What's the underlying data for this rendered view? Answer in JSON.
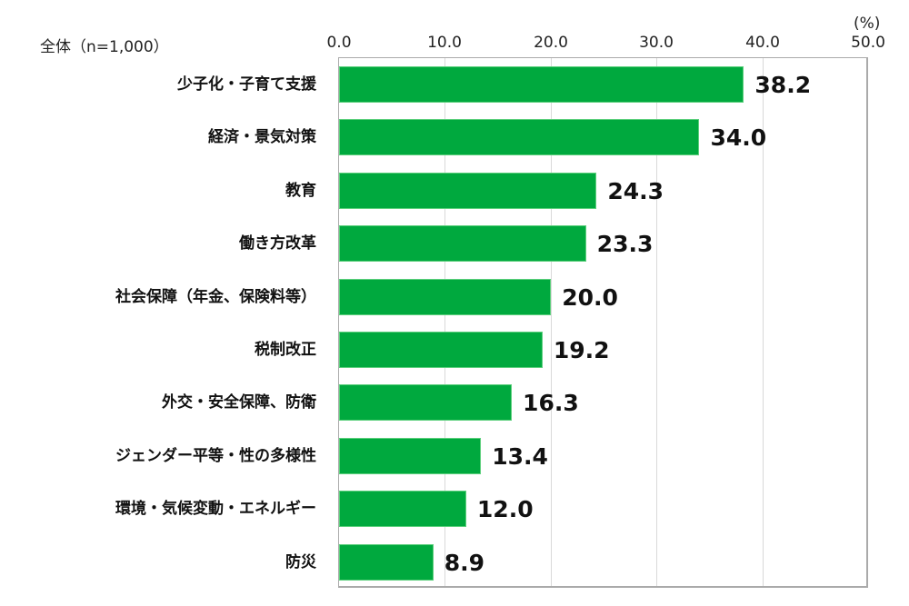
{
  "header": {
    "sample_label": "全体（n=1,000）",
    "unit_label": "(%)"
  },
  "axis": {
    "ticks": [
      "0.0",
      "10.0",
      "20.0",
      "30.0",
      "40.0",
      "50.0"
    ]
  },
  "bars": [
    {
      "label": "少子化・子育て支援",
      "value": "38.2"
    },
    {
      "label": "経済・景気対策",
      "value": "34.0"
    },
    {
      "label": "教育",
      "value": "24.3"
    },
    {
      "label": "働き方改革",
      "value": "23.3"
    },
    {
      "label": "社会保障（年金、保険料等）",
      "value": "20.0"
    },
    {
      "label": "税制改正",
      "value": "19.2"
    },
    {
      "label": "外交・安全保障、防衛",
      "value": "16.3"
    },
    {
      "label": "ジェンダー平等・性の多様性",
      "value": "13.4"
    },
    {
      "label": "環境・気候変動・エネルギー",
      "value": "12.0"
    },
    {
      "label": "防災",
      "value": "8.9"
    }
  ],
  "colors": {
    "bar": "#00a93e",
    "gridline": "#d9d9d9",
    "axis": "#aaaaaa"
  },
  "chart_data": {
    "type": "bar",
    "orientation": "horizontal",
    "title": "",
    "subtitle": "全体（n=1,000）",
    "xlabel": "(%)",
    "ylabel": "",
    "categories": [
      "少子化・子育て支援",
      "経済・景気対策",
      "教育",
      "働き方改革",
      "社会保障（年金、保険料等）",
      "税制改正",
      "外交・安全保障、防衛",
      "ジェンダー平等・性の多様性",
      "環境・気候変動・エネルギー",
      "防災"
    ],
    "values": [
      38.2,
      34.0,
      24.3,
      23.3,
      20.0,
      19.2,
      16.3,
      13.4,
      12.0,
      8.9
    ],
    "xlim": [
      0,
      50
    ],
    "xticks": [
      0,
      10,
      20,
      30,
      40,
      50
    ],
    "axis_position": "top",
    "grid": true,
    "data_labels": true,
    "legend": null,
    "bar_color": "#00a93e"
  }
}
